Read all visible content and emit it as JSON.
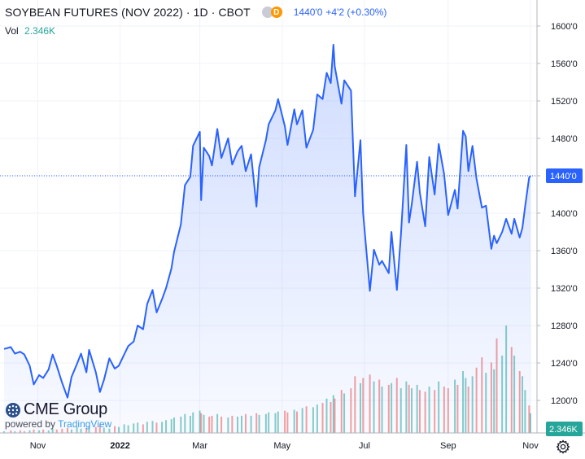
{
  "header": {
    "title": "SOYBEAN FUTURES (NOV 2022) · 1D · CBOT",
    "badge": "D",
    "last_price": "1440'0",
    "change": "+4'2 (+0.30%)"
  },
  "volume": {
    "label": "Vol",
    "value": "2.346K"
  },
  "price_tag": "1440'0",
  "volume_tag": "2.346K",
  "logo": {
    "brand": "CME Group",
    "powered_by": "powered by",
    "provider": "TradingView"
  },
  "icons": {
    "logo": "cme-globe-icon",
    "settings": "gear-icon"
  },
  "colors": {
    "line": "#2962ff",
    "area": "#2962ff",
    "vol_up": "#26a69a",
    "vol_down": "#ef5350"
  },
  "chart_data": {
    "type": "area",
    "title": "SOYBEAN FUTURES (NOV 2022)",
    "ylim": [
      1165,
      1620
    ],
    "y_ticks": [
      1200,
      1240,
      1280,
      1320,
      1360,
      1400,
      1440,
      1480,
      1520,
      1560,
      1600
    ],
    "y_tick_labels": [
      "1200'0",
      "1240'0",
      "1280'0",
      "1320'0",
      "1360'0",
      "1400'0",
      "1440'0",
      "1480'0",
      "1520'0",
      "1560'0",
      "1600'0"
    ],
    "x_ticks": [
      {
        "label": "Nov",
        "date": "2021-11-01"
      },
      {
        "label": "2022",
        "date": "2022-01-01"
      },
      {
        "label": "Mar",
        "date": "2022-03-01"
      },
      {
        "label": "May",
        "date": "2022-05-01"
      },
      {
        "label": "Jul",
        "date": "2022-07-01"
      },
      {
        "label": "Sep",
        "date": "2022-09-01"
      },
      {
        "label": "Nov",
        "date": "2022-11-01"
      }
    ],
    "x_range": [
      "2021-10-07",
      "2022-11-01"
    ],
    "last_value": 1440,
    "grid": true,
    "series": [
      {
        "values": [
          [
            "2021-10-07",
            1255
          ],
          [
            "2021-10-12",
            1257
          ],
          [
            "2021-10-15",
            1250
          ],
          [
            "2021-10-19",
            1252
          ],
          [
            "2021-10-22",
            1249
          ],
          [
            "2021-10-26",
            1237
          ],
          [
            "2021-10-29",
            1217
          ],
          [
            "2021-11-02",
            1227
          ],
          [
            "2021-11-05",
            1224
          ],
          [
            "2021-11-09",
            1233
          ],
          [
            "2021-11-12",
            1249
          ],
          [
            "2021-11-15",
            1237
          ],
          [
            "2021-11-19",
            1219
          ],
          [
            "2021-11-23",
            1203
          ],
          [
            "2021-11-26",
            1225
          ],
          [
            "2021-11-30",
            1239
          ],
          [
            "2021-12-03",
            1250
          ],
          [
            "2021-12-07",
            1230
          ],
          [
            "2021-12-09",
            1254
          ],
          [
            "2021-12-14",
            1230
          ],
          [
            "2021-12-17",
            1209
          ],
          [
            "2021-12-20",
            1222
          ],
          [
            "2021-12-24",
            1245
          ],
          [
            "2021-12-28",
            1234
          ],
          [
            "2021-12-31",
            1237
          ],
          [
            "2022-01-04",
            1249
          ],
          [
            "2022-01-07",
            1258
          ],
          [
            "2022-01-11",
            1263
          ],
          [
            "2022-01-14",
            1280
          ],
          [
            "2022-01-18",
            1276
          ],
          [
            "2022-01-21",
            1303
          ],
          [
            "2022-01-25",
            1318
          ],
          [
            "2022-01-28",
            1294
          ],
          [
            "2022-02-01",
            1308
          ],
          [
            "2022-02-04",
            1320
          ],
          [
            "2022-02-08",
            1341
          ],
          [
            "2022-02-10",
            1359
          ],
          [
            "2022-02-15",
            1388
          ],
          [
            "2022-02-18",
            1430
          ],
          [
            "2022-02-22",
            1439
          ],
          [
            "2022-02-24",
            1472
          ],
          [
            "2022-03-01",
            1487
          ],
          [
            "2022-03-02",
            1414
          ],
          [
            "2022-03-04",
            1470
          ],
          [
            "2022-03-08",
            1461
          ],
          [
            "2022-03-10",
            1451
          ],
          [
            "2022-03-14",
            1490
          ],
          [
            "2022-03-17",
            1459
          ],
          [
            "2022-03-22",
            1480
          ],
          [
            "2022-03-25",
            1452
          ],
          [
            "2022-03-29",
            1466
          ],
          [
            "2022-04-01",
            1472
          ],
          [
            "2022-04-04",
            1445
          ],
          [
            "2022-04-08",
            1463
          ],
          [
            "2022-04-12",
            1407
          ],
          [
            "2022-04-14",
            1449
          ],
          [
            "2022-04-19",
            1478
          ],
          [
            "2022-04-21",
            1495
          ],
          [
            "2022-04-26",
            1510
          ],
          [
            "2022-04-28",
            1522
          ],
          [
            "2022-05-03",
            1493
          ],
          [
            "2022-05-05",
            1473
          ],
          [
            "2022-05-10",
            1511
          ],
          [
            "2022-05-12",
            1495
          ],
          [
            "2022-05-16",
            1510
          ],
          [
            "2022-05-19",
            1470
          ],
          [
            "2022-05-24",
            1489
          ],
          [
            "2022-05-27",
            1527
          ],
          [
            "2022-05-31",
            1522
          ],
          [
            "2022-06-03",
            1550
          ],
          [
            "2022-06-06",
            1539
          ],
          [
            "2022-06-08",
            1580
          ],
          [
            "2022-06-09",
            1557
          ],
          [
            "2022-06-14",
            1517
          ],
          [
            "2022-06-16",
            1542
          ],
          [
            "2022-06-21",
            1531
          ],
          [
            "2022-06-24",
            1418
          ],
          [
            "2022-06-28",
            1478
          ],
          [
            "2022-06-30",
            1400
          ],
          [
            "2022-07-05",
            1317
          ],
          [
            "2022-07-08",
            1361
          ],
          [
            "2022-07-12",
            1345
          ],
          [
            "2022-07-14",
            1349
          ],
          [
            "2022-07-19",
            1336
          ],
          [
            "2022-07-21",
            1380
          ],
          [
            "2022-07-25",
            1318
          ],
          [
            "2022-07-28",
            1376
          ],
          [
            "2022-08-01",
            1473
          ],
          [
            "2022-08-03",
            1390
          ],
          [
            "2022-08-05",
            1409
          ],
          [
            "2022-08-09",
            1455
          ],
          [
            "2022-08-11",
            1422
          ],
          [
            "2022-08-15",
            1386
          ],
          [
            "2022-08-18",
            1460
          ],
          [
            "2022-08-22",
            1420
          ],
          [
            "2022-08-25",
            1474
          ],
          [
            "2022-08-29",
            1442
          ],
          [
            "2022-09-01",
            1398
          ],
          [
            "2022-09-06",
            1425
          ],
          [
            "2022-09-08",
            1405
          ],
          [
            "2022-09-12",
            1488
          ],
          [
            "2022-09-14",
            1482
          ],
          [
            "2022-09-16",
            1445
          ],
          [
            "2022-09-19",
            1472
          ],
          [
            "2022-09-22",
            1437
          ],
          [
            "2022-09-26",
            1406
          ],
          [
            "2022-09-29",
            1408
          ],
          [
            "2022-10-03",
            1362
          ],
          [
            "2022-10-05",
            1376
          ],
          [
            "2022-10-07",
            1368
          ],
          [
            "2022-10-11",
            1380
          ],
          [
            "2022-10-14",
            1394
          ],
          [
            "2022-10-18",
            1378
          ],
          [
            "2022-10-20",
            1394
          ],
          [
            "2022-10-24",
            1374
          ],
          [
            "2022-10-26",
            1384
          ],
          [
            "2022-10-28",
            1407
          ],
          [
            "2022-10-31",
            1438
          ],
          [
            "2022-11-01",
            1440
          ]
        ]
      }
    ],
    "volume_series": {
      "name": "Vol",
      "last": 2.346,
      "values": [
        [
          "2021-10-07",
          0.2,
          "up"
        ],
        [
          "2021-10-12",
          0.3,
          "down"
        ],
        [
          "2021-10-15",
          0.2,
          "up"
        ],
        [
          "2021-10-19",
          0.3,
          "down"
        ],
        [
          "2021-10-22",
          0.2,
          "down"
        ],
        [
          "2021-10-26",
          0.3,
          "up"
        ],
        [
          "2021-10-29",
          0.4,
          "down"
        ],
        [
          "2021-11-02",
          0.3,
          "up"
        ],
        [
          "2021-11-05",
          0.4,
          "down"
        ],
        [
          "2021-11-09",
          0.3,
          "up"
        ],
        [
          "2021-11-12",
          0.5,
          "up"
        ],
        [
          "2021-11-15",
          0.4,
          "down"
        ],
        [
          "2021-11-19",
          0.5,
          "down"
        ],
        [
          "2021-11-23",
          0.6,
          "down"
        ],
        [
          "2021-11-26",
          0.4,
          "up"
        ],
        [
          "2021-11-30",
          0.7,
          "up"
        ],
        [
          "2021-12-03",
          0.5,
          "up"
        ],
        [
          "2021-12-07",
          0.6,
          "down"
        ],
        [
          "2021-12-09",
          0.8,
          "up"
        ],
        [
          "2021-12-14",
          0.7,
          "down"
        ],
        [
          "2021-12-17",
          0.9,
          "down"
        ],
        [
          "2021-12-20",
          0.6,
          "up"
        ],
        [
          "2021-12-24",
          0.5,
          "up"
        ],
        [
          "2021-12-28",
          0.8,
          "down"
        ],
        [
          "2021-12-31",
          0.7,
          "up"
        ],
        [
          "2022-01-04",
          1.0,
          "up"
        ],
        [
          "2022-01-07",
          0.9,
          "up"
        ],
        [
          "2022-01-11",
          1.1,
          "up"
        ],
        [
          "2022-01-14",
          1.2,
          "up"
        ],
        [
          "2022-01-18",
          1.0,
          "down"
        ],
        [
          "2022-01-21",
          1.3,
          "up"
        ],
        [
          "2022-01-25",
          1.4,
          "up"
        ],
        [
          "2022-01-28",
          1.2,
          "down"
        ],
        [
          "2022-02-01",
          1.3,
          "up"
        ],
        [
          "2022-02-04",
          1.5,
          "up"
        ],
        [
          "2022-02-08",
          1.6,
          "up"
        ],
        [
          "2022-02-10",
          1.8,
          "up"
        ],
        [
          "2022-02-15",
          1.9,
          "up"
        ],
        [
          "2022-02-18",
          2.2,
          "up"
        ],
        [
          "2022-02-22",
          2.0,
          "up"
        ],
        [
          "2022-02-24",
          2.4,
          "up"
        ],
        [
          "2022-03-01",
          2.6,
          "up"
        ],
        [
          "2022-03-02",
          2.3,
          "down"
        ],
        [
          "2022-03-04",
          2.1,
          "up"
        ],
        [
          "2022-03-08",
          1.9,
          "down"
        ],
        [
          "2022-03-10",
          2.0,
          "down"
        ],
        [
          "2022-03-14",
          2.2,
          "up"
        ],
        [
          "2022-03-17",
          1.9,
          "down"
        ],
        [
          "2022-03-22",
          1.8,
          "up"
        ],
        [
          "2022-03-25",
          2.0,
          "down"
        ],
        [
          "2022-03-29",
          1.9,
          "up"
        ],
        [
          "2022-04-01",
          2.0,
          "up"
        ],
        [
          "2022-04-04",
          2.2,
          "down"
        ],
        [
          "2022-04-08",
          2.0,
          "up"
        ],
        [
          "2022-04-12",
          2.3,
          "down"
        ],
        [
          "2022-04-14",
          2.1,
          "up"
        ],
        [
          "2022-04-19",
          2.2,
          "up"
        ],
        [
          "2022-04-21",
          2.4,
          "up"
        ],
        [
          "2022-04-26",
          2.3,
          "up"
        ],
        [
          "2022-04-28",
          2.5,
          "up"
        ],
        [
          "2022-05-03",
          2.6,
          "down"
        ],
        [
          "2022-05-05",
          2.4,
          "down"
        ],
        [
          "2022-05-10",
          2.7,
          "up"
        ],
        [
          "2022-05-12",
          2.5,
          "down"
        ],
        [
          "2022-05-16",
          2.9,
          "up"
        ],
        [
          "2022-05-19",
          3.1,
          "down"
        ],
        [
          "2022-05-24",
          3.0,
          "up"
        ],
        [
          "2022-05-27",
          3.3,
          "up"
        ],
        [
          "2022-05-31",
          3.5,
          "down"
        ],
        [
          "2022-06-03",
          4.0,
          "up"
        ],
        [
          "2022-06-06",
          3.6,
          "down"
        ],
        [
          "2022-06-08",
          4.4,
          "up"
        ],
        [
          "2022-06-09",
          4.0,
          "down"
        ],
        [
          "2022-06-14",
          5.0,
          "down"
        ],
        [
          "2022-06-16",
          4.6,
          "up"
        ],
        [
          "2022-06-21",
          5.2,
          "down"
        ],
        [
          "2022-06-24",
          6.6,
          "down"
        ],
        [
          "2022-06-28",
          5.8,
          "up"
        ],
        [
          "2022-06-30",
          6.4,
          "down"
        ],
        [
          "2022-07-05",
          6.8,
          "down"
        ],
        [
          "2022-07-08",
          6.0,
          "up"
        ],
        [
          "2022-07-12",
          6.2,
          "down"
        ],
        [
          "2022-07-14",
          5.4,
          "up"
        ],
        [
          "2022-07-19",
          5.6,
          "down"
        ],
        [
          "2022-07-21",
          5.8,
          "up"
        ],
        [
          "2022-07-25",
          6.4,
          "down"
        ],
        [
          "2022-07-28",
          5.2,
          "up"
        ],
        [
          "2022-08-01",
          6.0,
          "up"
        ],
        [
          "2022-08-03",
          5.6,
          "down"
        ],
        [
          "2022-08-05",
          5.2,
          "up"
        ],
        [
          "2022-08-09",
          5.6,
          "up"
        ],
        [
          "2022-08-11",
          5.0,
          "down"
        ],
        [
          "2022-08-15",
          4.8,
          "down"
        ],
        [
          "2022-08-18",
          5.4,
          "up"
        ],
        [
          "2022-08-22",
          5.0,
          "down"
        ],
        [
          "2022-08-25",
          6.0,
          "up"
        ],
        [
          "2022-08-29",
          5.4,
          "down"
        ],
        [
          "2022-09-01",
          5.2,
          "down"
        ],
        [
          "2022-09-06",
          6.2,
          "up"
        ],
        [
          "2022-09-08",
          5.6,
          "down"
        ],
        [
          "2022-09-12",
          7.2,
          "up"
        ],
        [
          "2022-09-14",
          6.4,
          "up"
        ],
        [
          "2022-09-16",
          5.4,
          "down"
        ],
        [
          "2022-09-19",
          6.6,
          "up"
        ],
        [
          "2022-09-22",
          7.6,
          "down"
        ],
        [
          "2022-09-26",
          8.8,
          "down"
        ],
        [
          "2022-09-29",
          7.0,
          "up"
        ],
        [
          "2022-10-03",
          8.2,
          "down"
        ],
        [
          "2022-10-05",
          7.4,
          "up"
        ],
        [
          "2022-10-07",
          11.0,
          "down"
        ],
        [
          "2022-10-11",
          9.0,
          "up"
        ],
        [
          "2022-10-14",
          12.5,
          "up"
        ],
        [
          "2022-10-18",
          10.0,
          "down"
        ],
        [
          "2022-10-20",
          9.0,
          "up"
        ],
        [
          "2022-10-24",
          7.2,
          "down"
        ],
        [
          "2022-10-26",
          6.6,
          "up"
        ],
        [
          "2022-10-28",
          5.0,
          "up"
        ],
        [
          "2022-10-31",
          3.2,
          "down"
        ],
        [
          "2022-11-01",
          2.3,
          "up"
        ]
      ]
    }
  }
}
